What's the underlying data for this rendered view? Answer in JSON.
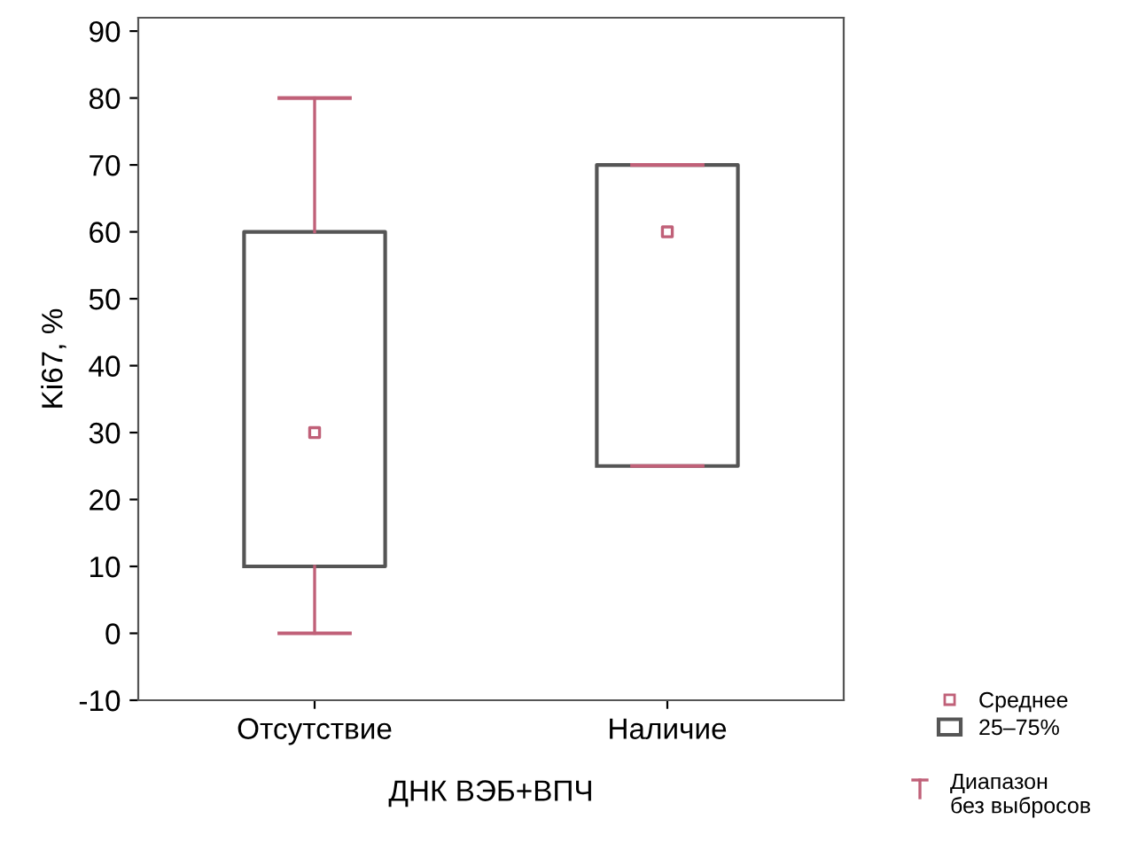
{
  "chart_data": {
    "type": "box",
    "xlabel": "ДНК ВЭБ+ВПЧ",
    "ylabel": "Ki67, %",
    "categories": [
      "Отсутствие",
      "Наличие"
    ],
    "series": [
      {
        "type": "scatter",
        "name": "Среднее",
        "color": "#c06078",
        "marker": "square",
        "values": [
          30,
          60
        ]
      },
      {
        "name": "25–75%",
        "color": "#555555",
        "boxes": [
          {
            "low": 0,
            "q1": 10,
            "median": null,
            "q3": 60,
            "high": 80
          },
          {
            "low": 25,
            "q1": 25,
            "median": null,
            "q3": 70,
            "high": 70
          }
        ]
      }
    ],
    "color": "#c06078",
    "ylim": [
      -10,
      92
    ],
    "yticks": [
      -10,
      0,
      10,
      20,
      30,
      40,
      50,
      60,
      70,
      80,
      90
    ],
    "grid": false,
    "legend": "bottom right",
    "annotations": [
      "Диапазон\nбез выбросов"
    ]
  }
}
